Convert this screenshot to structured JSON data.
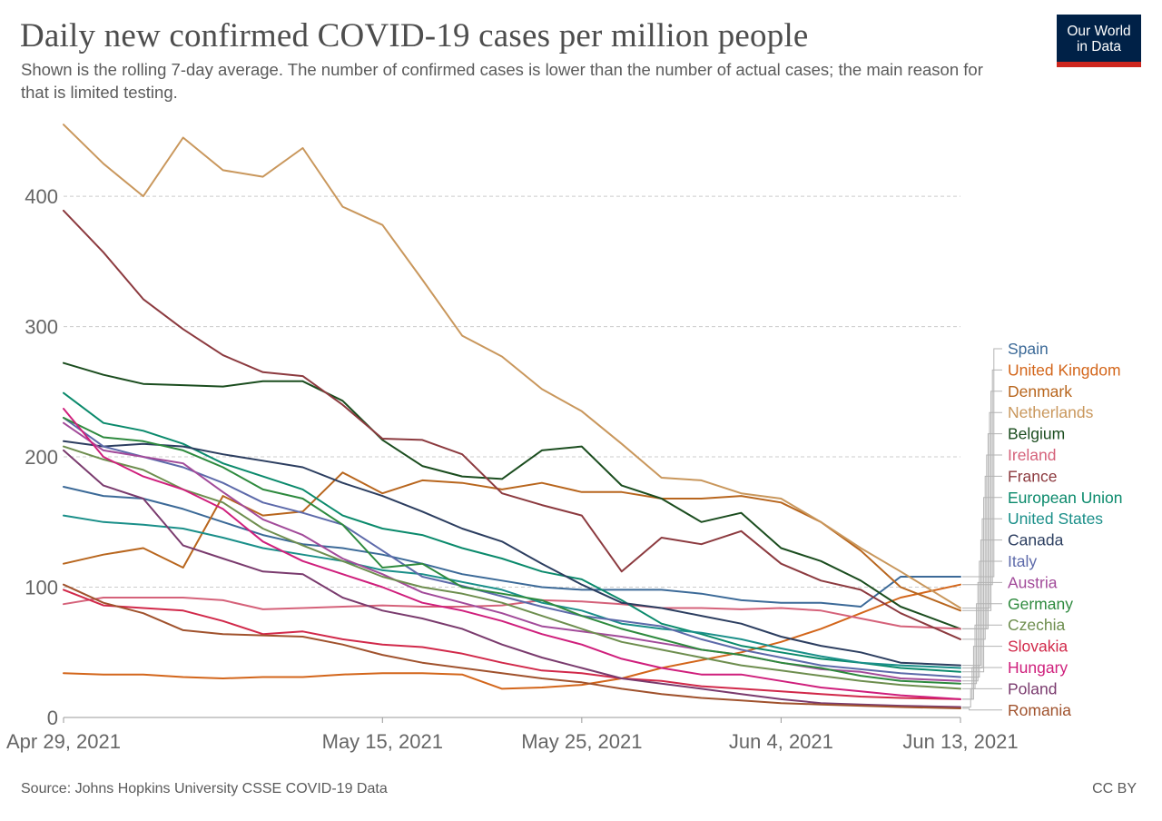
{
  "header": {
    "title": "Daily new confirmed COVID-19 cases per million people",
    "subtitle": "Shown is the rolling 7-day average. The number of confirmed cases is lower than the number of actual cases; the main reason for that is limited testing.",
    "logo_line1": "Our World",
    "logo_line2": "in Data"
  },
  "footer": {
    "source": "Source: Johns Hopkins University CSSE COVID-19 Data",
    "license": "CC BY"
  },
  "colors": {
    "logo_bg": "#002147",
    "logo_accent": "#ce261e",
    "grid": "#cccccc"
  },
  "chart_data": {
    "type": "line",
    "title": "Daily new confirmed COVID-19 cases per million people",
    "subtitle": "Shown is the rolling 7-day average. The number of confirmed cases is lower than the number of actual cases; the main reason for that is limited testing.",
    "xlabel": "",
    "ylabel": "",
    "x": [
      "2021-04-29",
      "2021-05-01",
      "2021-05-03",
      "2021-05-05",
      "2021-05-07",
      "2021-05-09",
      "2021-05-11",
      "2021-05-13",
      "2021-05-15",
      "2021-05-17",
      "2021-05-19",
      "2021-05-21",
      "2021-05-23",
      "2021-05-25",
      "2021-05-27",
      "2021-05-29",
      "2021-05-31",
      "2021-06-02",
      "2021-06-04",
      "2021-06-06",
      "2021-06-08",
      "2021-06-10",
      "2021-06-13"
    ],
    "x_ticks": [
      {
        "date": "2021-04-29",
        "label": "Apr 29, 2021"
      },
      {
        "date": "2021-05-15",
        "label": "May 15, 2021"
      },
      {
        "date": "2021-05-25",
        "label": "May 25, 2021"
      },
      {
        "date": "2021-06-04",
        "label": "Jun 4, 2021"
      },
      {
        "date": "2021-06-13",
        "label": "Jun 13, 2021"
      }
    ],
    "y_ticks": [
      0,
      100,
      200,
      300,
      400
    ],
    "ylim": [
      0,
      460
    ],
    "grid": true,
    "legend_placement": "right",
    "series": [
      {
        "name": "Spain",
        "color": "#3c6a98",
        "values": [
          177,
          170,
          168,
          160,
          150,
          140,
          133,
          130,
          125,
          118,
          110,
          105,
          100,
          98,
          98,
          98,
          95,
          90,
          88,
          88,
          85,
          108,
          108
        ]
      },
      {
        "name": "United Kingdom",
        "color": "#d3661b",
        "values": [
          34,
          33,
          33,
          31,
          30,
          31,
          31,
          33,
          34,
          34,
          33,
          22,
          23,
          25,
          30,
          38,
          44,
          50,
          58,
          68,
          80,
          92,
          102
        ]
      },
      {
        "name": "Denmark",
        "color": "#b8661e",
        "values": [
          118,
          125,
          130,
          115,
          170,
          155,
          158,
          188,
          172,
          182,
          180,
          175,
          180,
          173,
          173,
          168,
          168,
          170,
          165,
          150,
          128,
          100,
          82
        ]
      },
      {
        "name": "Netherlands",
        "color": "#c9975c",
        "values": [
          455,
          425,
          400,
          445,
          420,
          415,
          437,
          392,
          378,
          336,
          293,
          277,
          252,
          235,
          210,
          184,
          182,
          172,
          168,
          150,
          130,
          112,
          84
        ]
      },
      {
        "name": "Belgium",
        "color": "#1b4d1f",
        "values": [
          272,
          263,
          256,
          255,
          254,
          258,
          258,
          243,
          213,
          193,
          185,
          183,
          205,
          208,
          178,
          168,
          150,
          157,
          130,
          120,
          105,
          85,
          68
        ]
      },
      {
        "name": "Ireland",
        "color": "#d5627a",
        "values": [
          87,
          92,
          92,
          92,
          90,
          83,
          84,
          85,
          86,
          85,
          85,
          86,
          90,
          89,
          87,
          84,
          84,
          83,
          84,
          82,
          76,
          70,
          68
        ]
      },
      {
        "name": "France",
        "color": "#8c3a3f",
        "values": [
          389,
          357,
          321,
          298,
          278,
          265,
          262,
          240,
          214,
          213,
          202,
          172,
          163,
          155,
          112,
          138,
          133,
          143,
          118,
          105,
          98,
          80,
          60
        ]
      },
      {
        "name": "European Union",
        "color": "#0b8a6c",
        "values": [
          249,
          226,
          220,
          210,
          195,
          185,
          175,
          155,
          145,
          140,
          130,
          122,
          112,
          106,
          90,
          72,
          64,
          55,
          50,
          45,
          42,
          38,
          35
        ]
      },
      {
        "name": "United States",
        "color": "#1a8f89",
        "values": [
          155,
          150,
          148,
          145,
          138,
          130,
          125,
          120,
          113,
          110,
          104,
          98,
          88,
          82,
          72,
          68,
          65,
          60,
          53,
          47,
          42,
          40,
          38
        ]
      },
      {
        "name": "Canada",
        "color": "#2c3e60",
        "values": [
          212,
          208,
          210,
          208,
          202,
          197,
          192,
          180,
          170,
          158,
          145,
          135,
          118,
          102,
          88,
          84,
          78,
          72,
          62,
          55,
          50,
          42,
          40
        ]
      },
      {
        "name": "Italy",
        "color": "#5d6aaa",
        "values": [
          230,
          208,
          200,
          192,
          180,
          165,
          157,
          148,
          128,
          108,
          101,
          93,
          85,
          78,
          74,
          70,
          60,
          52,
          46,
          40,
          37,
          34,
          31
        ]
      },
      {
        "name": "Austria",
        "color": "#a24b9a",
        "values": [
          226,
          205,
          200,
          195,
          173,
          152,
          140,
          122,
          110,
          96,
          88,
          80,
          70,
          66,
          62,
          57,
          52,
          48,
          42,
          37,
          35,
          30,
          28
        ]
      },
      {
        "name": "Germany",
        "color": "#2e8a3e",
        "values": [
          230,
          215,
          212,
          205,
          192,
          175,
          168,
          148,
          115,
          118,
          100,
          95,
          90,
          78,
          68,
          60,
          52,
          48,
          42,
          38,
          32,
          28,
          26
        ]
      },
      {
        "name": "Czechia",
        "color": "#6e8e4f",
        "values": [
          208,
          198,
          190,
          175,
          165,
          145,
          132,
          120,
          108,
          100,
          95,
          88,
          78,
          68,
          58,
          52,
          46,
          40,
          36,
          32,
          28,
          25,
          22
        ]
      },
      {
        "name": "Slovakia",
        "color": "#d1294a",
        "values": [
          98,
          86,
          84,
          82,
          74,
          64,
          66,
          60,
          56,
          54,
          49,
          42,
          36,
          34,
          30,
          28,
          24,
          22,
          20,
          18,
          16,
          15,
          14
        ]
      },
      {
        "name": "Hungary",
        "color": "#cf1f7c",
        "values": [
          237,
          200,
          185,
          175,
          160,
          135,
          120,
          110,
          100,
          88,
          82,
          74,
          64,
          56,
          45,
          38,
          33,
          33,
          28,
          23,
          20,
          17,
          14
        ]
      },
      {
        "name": "Poland",
        "color": "#7a3b6e",
        "values": [
          205,
          178,
          168,
          132,
          122,
          112,
          110,
          92,
          82,
          76,
          68,
          56,
          46,
          38,
          30,
          26,
          22,
          18,
          14,
          11,
          10,
          9,
          8
        ]
      },
      {
        "name": "Romania",
        "color": "#a0522d",
        "values": [
          102,
          88,
          80,
          67,
          64,
          63,
          62,
          56,
          48,
          42,
          38,
          34,
          30,
          27,
          22,
          18,
          15,
          13,
          11,
          10,
          9,
          8,
          7
        ]
      }
    ]
  }
}
